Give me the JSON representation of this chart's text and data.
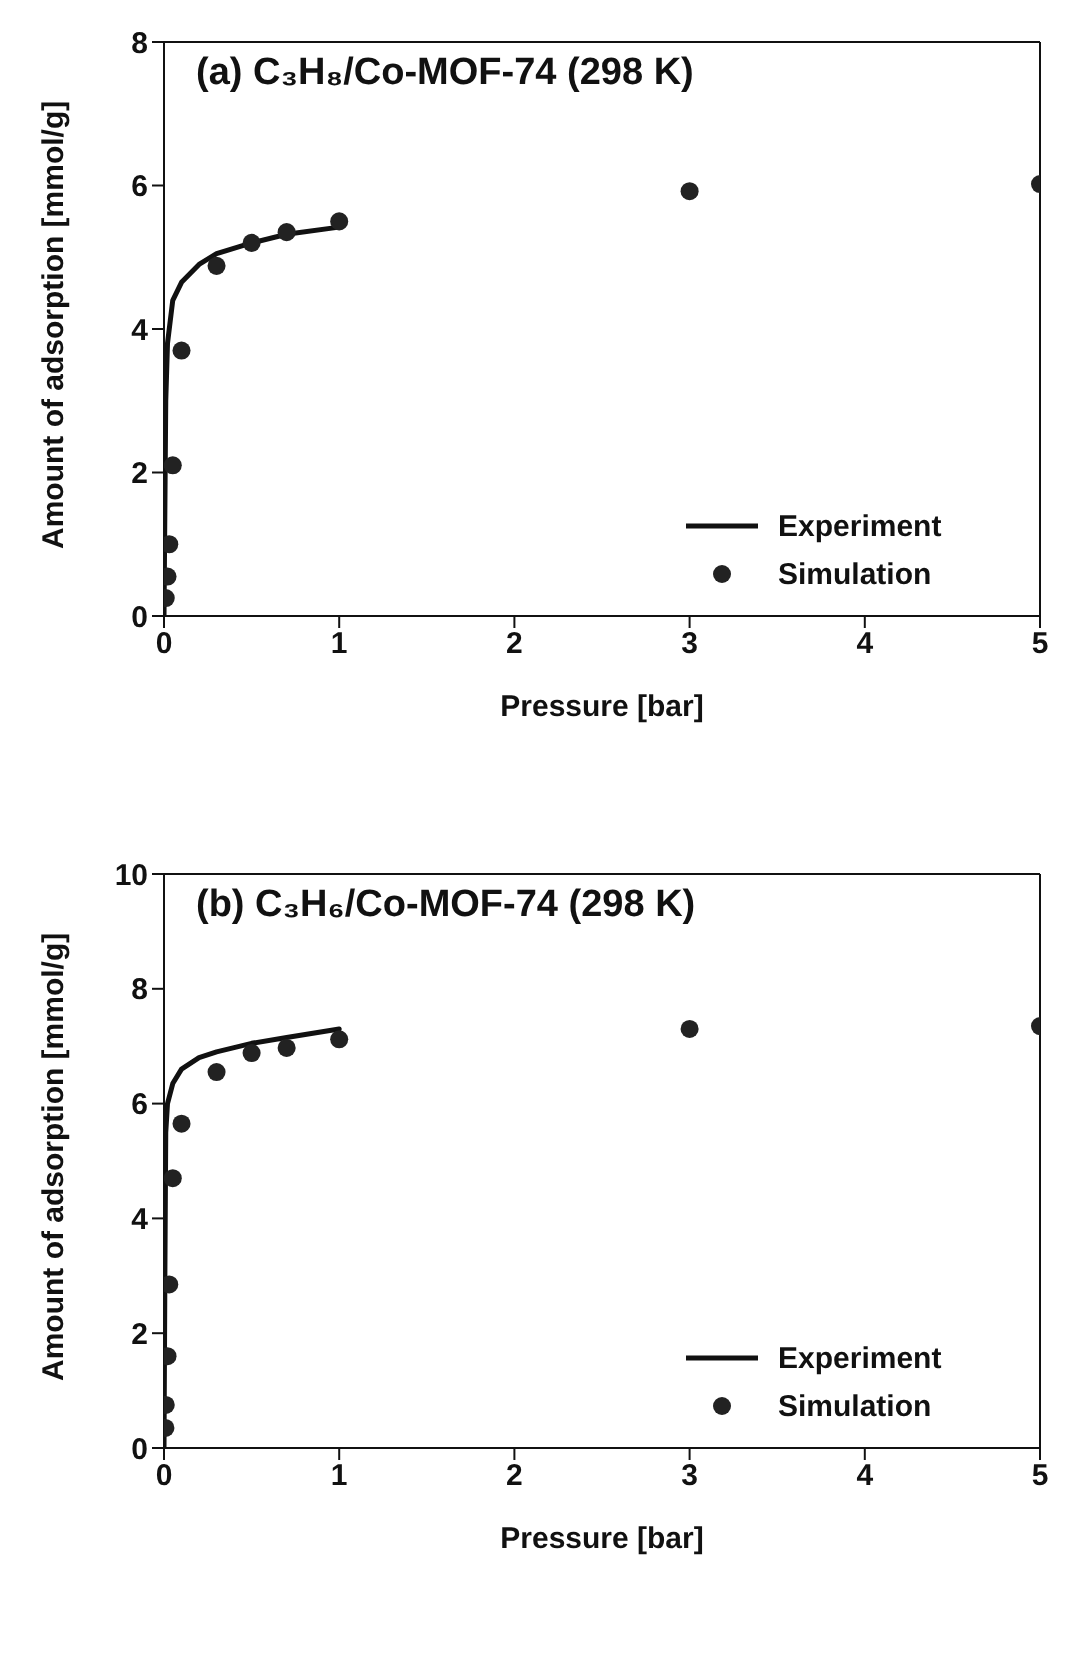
{
  "chart_data": [
    {
      "type": "scatter",
      "title": "(a) C₃H₈/Co-MOF-74 (298 K)",
      "xlabel": "Pressure [bar]",
      "ylabel": "Amount of adsorption [mmol/g]",
      "xlim": [
        0,
        5
      ],
      "xticks": [
        0,
        1,
        2,
        3,
        4,
        5
      ],
      "ylim": [
        0,
        8
      ],
      "yticks": [
        0,
        2,
        4,
        6,
        8
      ],
      "grid": false,
      "legend": "bottom right",
      "series": [
        {
          "name": "Experiment",
          "type": "line",
          "color": "#111111",
          "marker": "none",
          "line_style": "solid",
          "x": [
            0,
            0.005,
            0.01,
            0.02,
            0.05,
            0.1,
            0.2,
            0.3,
            0.5,
            0.7,
            1
          ],
          "values": [
            0,
            1.5,
            3.0,
            3.8,
            4.4,
            4.65,
            4.9,
            5.05,
            5.2,
            5.32,
            5.42
          ]
        },
        {
          "name": "Simulation",
          "type": "scatter",
          "color": "#222222",
          "marker": "circle",
          "x": [
            0.01,
            0.02,
            0.03,
            0.05,
            0.1,
            0.3,
            0.5,
            0.7,
            1,
            3,
            5
          ],
          "values": [
            0.25,
            0.55,
            1.0,
            2.1,
            3.7,
            4.88,
            5.2,
            5.35,
            5.5,
            5.92,
            6.02
          ]
        }
      ]
    },
    {
      "type": "scatter",
      "title": "(b) C₃H₆/Co-MOF-74 (298 K)",
      "xlabel": "Pressure [bar]",
      "ylabel": "Amount of adsorption [mmol/g]",
      "xlim": [
        0,
        5
      ],
      "xticks": [
        0,
        1,
        2,
        3,
        4,
        5
      ],
      "ylim": [
        0,
        10
      ],
      "yticks": [
        0,
        2,
        4,
        6,
        8,
        10
      ],
      "grid": false,
      "legend": "bottom right",
      "series": [
        {
          "name": "Experiment",
          "type": "line",
          "color": "#111111",
          "marker": "none",
          "line_style": "solid",
          "x": [
            0,
            0.005,
            0.01,
            0.02,
            0.05,
            0.1,
            0.2,
            0.3,
            0.5,
            0.7,
            1
          ],
          "values": [
            0,
            3.0,
            5.5,
            6.0,
            6.35,
            6.6,
            6.8,
            6.9,
            7.05,
            7.15,
            7.3
          ]
        },
        {
          "name": "Simulation",
          "type": "scatter",
          "color": "#222222",
          "marker": "circle",
          "x": [
            0.008,
            0.01,
            0.02,
            0.03,
            0.05,
            0.1,
            0.3,
            0.5,
            0.7,
            1,
            3,
            5
          ],
          "values": [
            0.35,
            0.75,
            1.6,
            2.85,
            4.7,
            5.65,
            6.55,
            6.88,
            6.97,
            7.12,
            7.3,
            7.35
          ]
        }
      ]
    }
  ]
}
